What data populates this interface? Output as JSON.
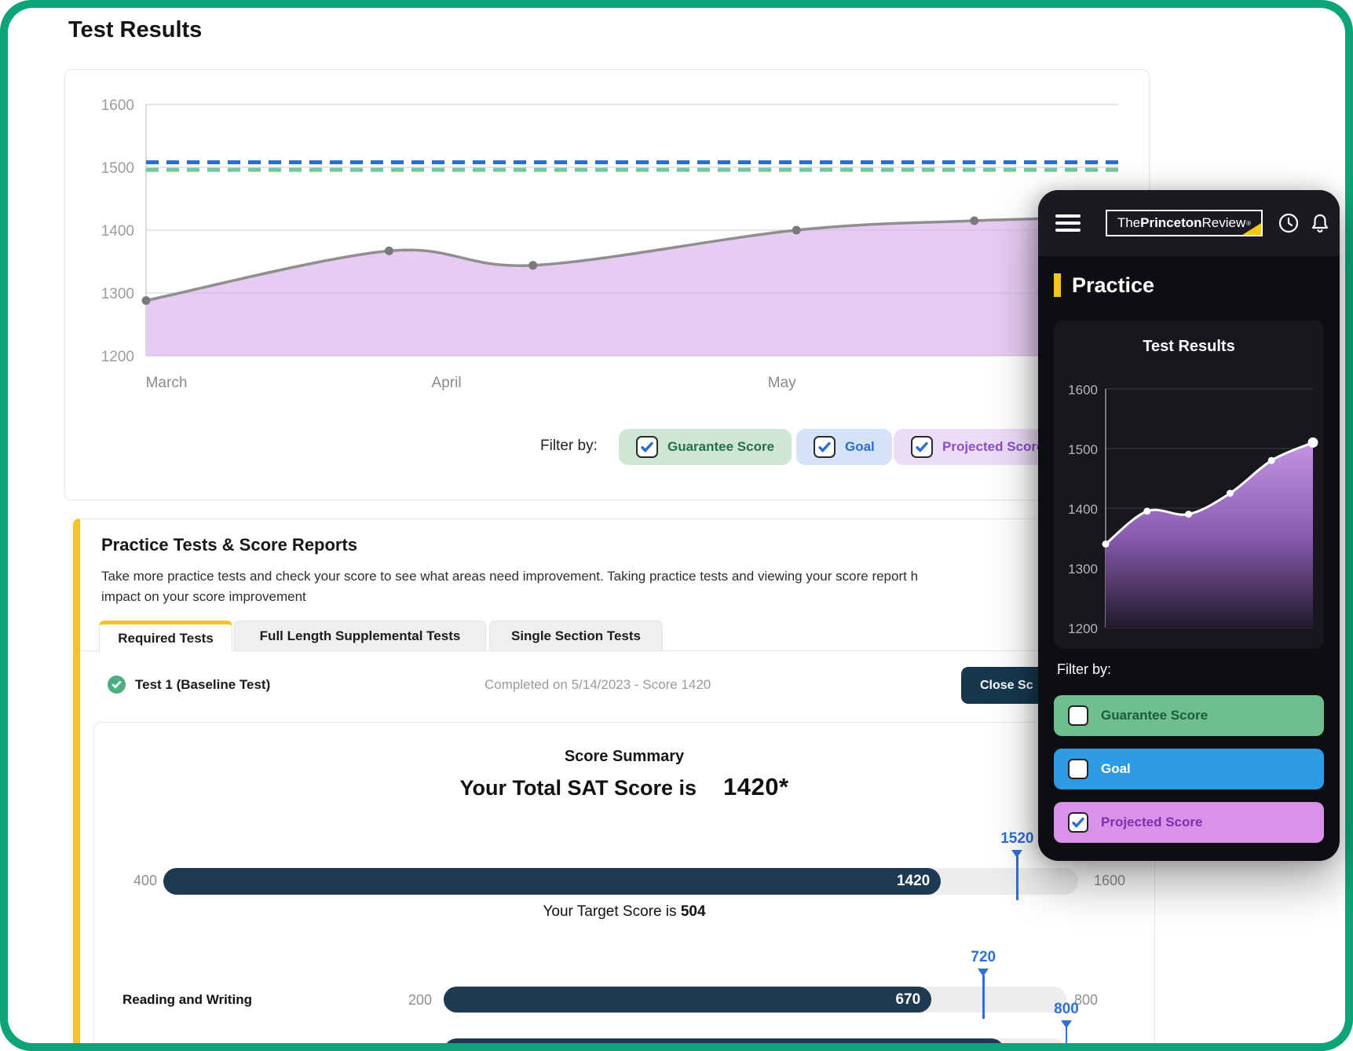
{
  "header": {
    "title": "Test Results"
  },
  "filter": {
    "label": "Filter by:",
    "options": [
      {
        "label": "Guarantee Score",
        "checked": true,
        "bg": "#cfe6d4",
        "text_color": "#266e4b"
      },
      {
        "label": "Goal",
        "checked": true,
        "bg": "#d4e3f7",
        "text_color": "#2a6fd1"
      },
      {
        "label": "Projected Score",
        "checked": true,
        "bg": "#eddcf7",
        "text_color": "#8b4dc8"
      }
    ]
  },
  "practice": {
    "heading": "Practice Tests & Score Reports",
    "description_line1": "Take more practice tests and check your score to see what areas need improvement. Taking practice tests and viewing your score report h",
    "description_line2": "impact on your score improvement",
    "tabs": [
      {
        "label": "Required Tests",
        "active": true
      },
      {
        "label": "Full Length Supplemental Tests",
        "active": false
      },
      {
        "label": "Single Section Tests",
        "active": false
      }
    ],
    "test": {
      "name": "Test 1 (Baseline Test)",
      "status": "Completed on 5/14/2023 - Score 1420",
      "action_label": "Close Sc"
    }
  },
  "score": {
    "summary_title": "Score Summary",
    "total_prefix": "Your Total SAT Score is",
    "total_value": "1420*",
    "total_bar": {
      "min": 400,
      "max": 1600,
      "value": 1420,
      "marker": 1520
    },
    "target_prefix": "Your Target Score is ",
    "target_value": "504",
    "sections": [
      {
        "label": "Reading and Writing",
        "min": 200,
        "max": 800,
        "value": 670,
        "marker": 720
      },
      {
        "label": "",
        "min": 200,
        "max": 800,
        "value": 740,
        "marker": 800
      }
    ]
  },
  "phone": {
    "logo": {
      "part1": "The",
      "part2": "Princeton",
      "part3": "Review",
      "mark": "®"
    },
    "section_title": "Practice",
    "card_title": "Test Results",
    "filter_label": "Filter by:",
    "buttons": [
      {
        "label": "Guarantee Score",
        "checked": false,
        "bg": "#6ebe8e",
        "text_color": "#1d5c3e"
      },
      {
        "label": "Goal",
        "checked": false,
        "bg": "#2d9ce5",
        "text_color": "#ffffff"
      },
      {
        "label": "Projected Score",
        "checked": true,
        "bg": "#d991ea",
        "text_color": "#7c2fb0"
      }
    ]
  },
  "chart_data": [
    {
      "id": "main",
      "type": "area",
      "title": "Test Results",
      "series_name": "Projected Score",
      "x": [
        0,
        0.25,
        0.398,
        0.669,
        0.852,
        1.0
      ],
      "values": [
        1288,
        1367,
        1344,
        1400,
        1415,
        1421
      ],
      "x_axis_labels": [
        {
          "label": "March",
          "pos": 0.021
        },
        {
          "label": "April",
          "pos": 0.309
        },
        {
          "label": "May",
          "pos": 0.654
        }
      ],
      "y_ticks": [
        1600,
        1500,
        1400,
        1300,
        1200
      ],
      "ylim": [
        1200,
        1600
      ],
      "grid": true,
      "legend_position": "none",
      "reference_lines": [
        {
          "name": "Goal",
          "value": 1508,
          "color": "#2b6cd4"
        },
        {
          "name": "Guarantee Score",
          "value": 1496,
          "color": "#72c79c"
        }
      ],
      "line_color": "#8f8f8f",
      "dot_color": "#7a7a7a",
      "fill_color": "#e6cbf2"
    },
    {
      "id": "phone",
      "type": "area",
      "title": "Test Results",
      "series_name": "Projected Score",
      "values": [
        1340,
        1395,
        1390,
        1425,
        1480,
        1510
      ],
      "y_ticks": [
        1600,
        1500,
        1400,
        1300,
        1200
      ],
      "ylim": [
        1200,
        1600
      ],
      "grid": true,
      "line_color": "#ffffff",
      "dot_color": "#ffffff",
      "fill_gradient_top": "#c493e3",
      "fill_gradient_bottom": "#221a2b"
    }
  ]
}
